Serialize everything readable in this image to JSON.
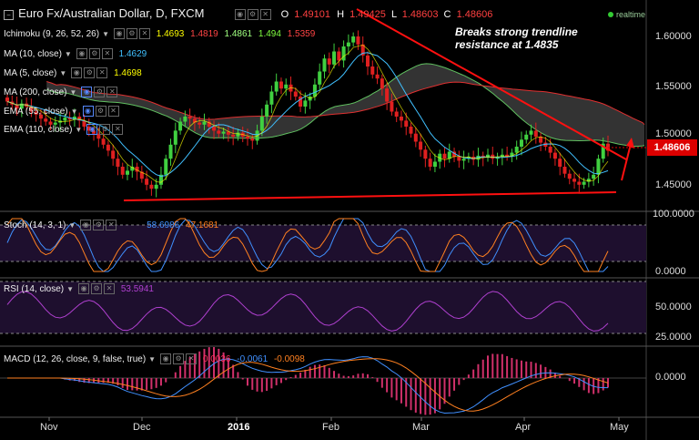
{
  "header": {
    "symbol_title": "Euro Fx/Australian Dollar, D, FXCM",
    "o_label": "O",
    "o_value": "1.49101",
    "h_label": "H",
    "h_value": "1.49425",
    "l_label": "L",
    "l_value": "1.48603",
    "c_label": "C",
    "c_value": "1.48606",
    "realtime": "realtime"
  },
  "indicators": [
    {
      "label": "Ichimoku (9, 26, 52, 26)",
      "values": [
        "1.4693",
        "1.4819",
        "1.4861",
        "1.494",
        "1.5359"
      ],
      "colors": [
        "#ffff00",
        "#ff4444",
        "#a0ff80",
        "#80ff40",
        "#ff4444"
      ]
    },
    {
      "label": "MA (10, close)",
      "values": [
        "1.4629"
      ],
      "colors": [
        "#40c0ff"
      ]
    },
    {
      "label": "MA (5, close)",
      "values": [
        "1.4698"
      ],
      "colors": [
        "#ffff00"
      ]
    },
    {
      "label": "MA (200, close)",
      "values": [],
      "colors": []
    },
    {
      "label": "EMA (55, close)",
      "values": [],
      "colors": []
    },
    {
      "label": "EMA (110, close)",
      "values": [],
      "colors": []
    }
  ],
  "annotation": {
    "line1": "Breaks strong trendline",
    "line2": "resistance at 1.4835"
  },
  "price_tag": "1.48606",
  "main_axis": [
    "1.60000",
    "1.55000",
    "1.50000",
    "1.45000"
  ],
  "stoch": {
    "label": "Stoch (14, 3, 1)",
    "k": "58.6986",
    "d": "47.1681",
    "k_color": "#4090ff",
    "d_color": "#ff8020",
    "axis": [
      "100.0000",
      "0.0000"
    ]
  },
  "rsi": {
    "label": "RSI (14, close)",
    "value": "53.5941",
    "color": "#b040d0",
    "axis": [
      "50.0000",
      "25.0000"
    ]
  },
  "macd": {
    "label": "MACD (12, 26, close, 9, false, true)",
    "hist": "0.0036",
    "macd": "-0.0061",
    "signal": "-0.0098",
    "axis": [
      "0.0000"
    ]
  },
  "x_labels": [
    "Nov",
    "Dec",
    "2016",
    "Feb",
    "Mar",
    "Apr",
    "May"
  ],
  "chart_data": {
    "type": "candlestick",
    "title": "Euro Fx/Australian Dollar, D, FXCM",
    "y_ticks": [
      1.6,
      1.55,
      1.5,
      1.45
    ],
    "ylim": [
      1.42,
      1.63
    ],
    "x_categories": [
      "Nov",
      "Dec",
      "2016",
      "Feb",
      "Mar",
      "Apr",
      "May"
    ],
    "last_close": 1.48606,
    "close_series": [
      1.535,
      1.532,
      1.528,
      1.533,
      1.53,
      1.525,
      1.522,
      1.518,
      1.515,
      1.512,
      1.514,
      1.516,
      1.519,
      1.517,
      1.52,
      1.516,
      1.51,
      1.506,
      1.503,
      1.498,
      1.492,
      1.486,
      1.478,
      1.47,
      1.462,
      1.466,
      1.47,
      1.465,
      1.458,
      1.452,
      1.448,
      1.452,
      1.462,
      1.478,
      1.492,
      1.506,
      1.515,
      1.52,
      1.518,
      1.514,
      1.512,
      1.515,
      1.51,
      1.506,
      1.503,
      1.505,
      1.502,
      1.5,
      1.504,
      1.5,
      1.498,
      1.496,
      1.506,
      1.52,
      1.532,
      1.545,
      1.555,
      1.548,
      1.552,
      1.545,
      1.54,
      1.53,
      1.536,
      1.54,
      1.552,
      1.565,
      1.578,
      1.572,
      1.585,
      1.576,
      1.59,
      1.594,
      1.6,
      1.592,
      1.581,
      1.57,
      1.562,
      1.558,
      1.548,
      1.535,
      1.525,
      1.52,
      1.516,
      1.51,
      1.503,
      1.495,
      1.487,
      1.478,
      1.47,
      1.475,
      1.483,
      1.478,
      1.485,
      1.48,
      1.476,
      1.478,
      1.48,
      1.477,
      1.481,
      1.479,
      1.482,
      1.478,
      1.48,
      1.482,
      1.48,
      1.484,
      1.49,
      1.497,
      1.502,
      1.506,
      1.5,
      1.494,
      1.49,
      1.484,
      1.478,
      1.47,
      1.463,
      1.458,
      1.455,
      1.452,
      1.455,
      1.458,
      1.462,
      1.478,
      1.493,
      1.486
    ],
    "trendline_resistance": {
      "label": "Breaks strong trendline resistance at 1.4835",
      "value": 1.4835
    },
    "trendline_support_range": [
      1.437,
      1.443
    ],
    "stoch_k_last": 58.6986,
    "stoch_d_last": 47.1681,
    "rsi_last": 53.5941,
    "macd_hist_last": 0.0036,
    "macd_last": -0.0061,
    "macd_signal_last": -0.0098,
    "colors": {
      "up": "#40d040",
      "down": "#e02020",
      "cloud": "#3c3c3c",
      "senkou_a": "#60c060",
      "senkou_b": "#e03030",
      "ma10": "#40c0ff",
      "ma5": "#ffff00"
    }
  }
}
